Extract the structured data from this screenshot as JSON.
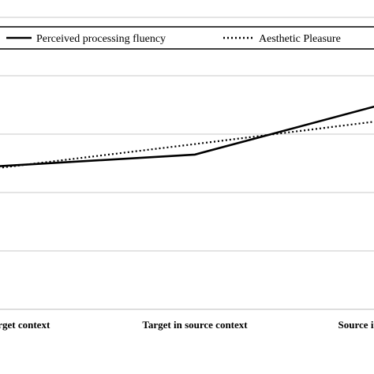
{
  "chart_data": {
    "type": "line",
    "categories": [
      "Target in target context",
      "Target in source context",
      "Source in source context"
    ],
    "series": [
      {
        "name": "Perceived processing fluency",
        "values": [
          3.45,
          3.65,
          4.55
        ],
        "style": "solid"
      },
      {
        "name": "Aesthetic Pleasure",
        "values": [
          3.42,
          3.83,
          4.25
        ],
        "style": "dotted"
      }
    ],
    "ylim": [
      1.0,
      6.0
    ],
    "yticks": [
      1,
      2,
      3,
      4,
      5,
      6
    ],
    "grid": true,
    "legend": "top",
    "line_color": "#000000",
    "grid_color": "#c8c8c8"
  }
}
